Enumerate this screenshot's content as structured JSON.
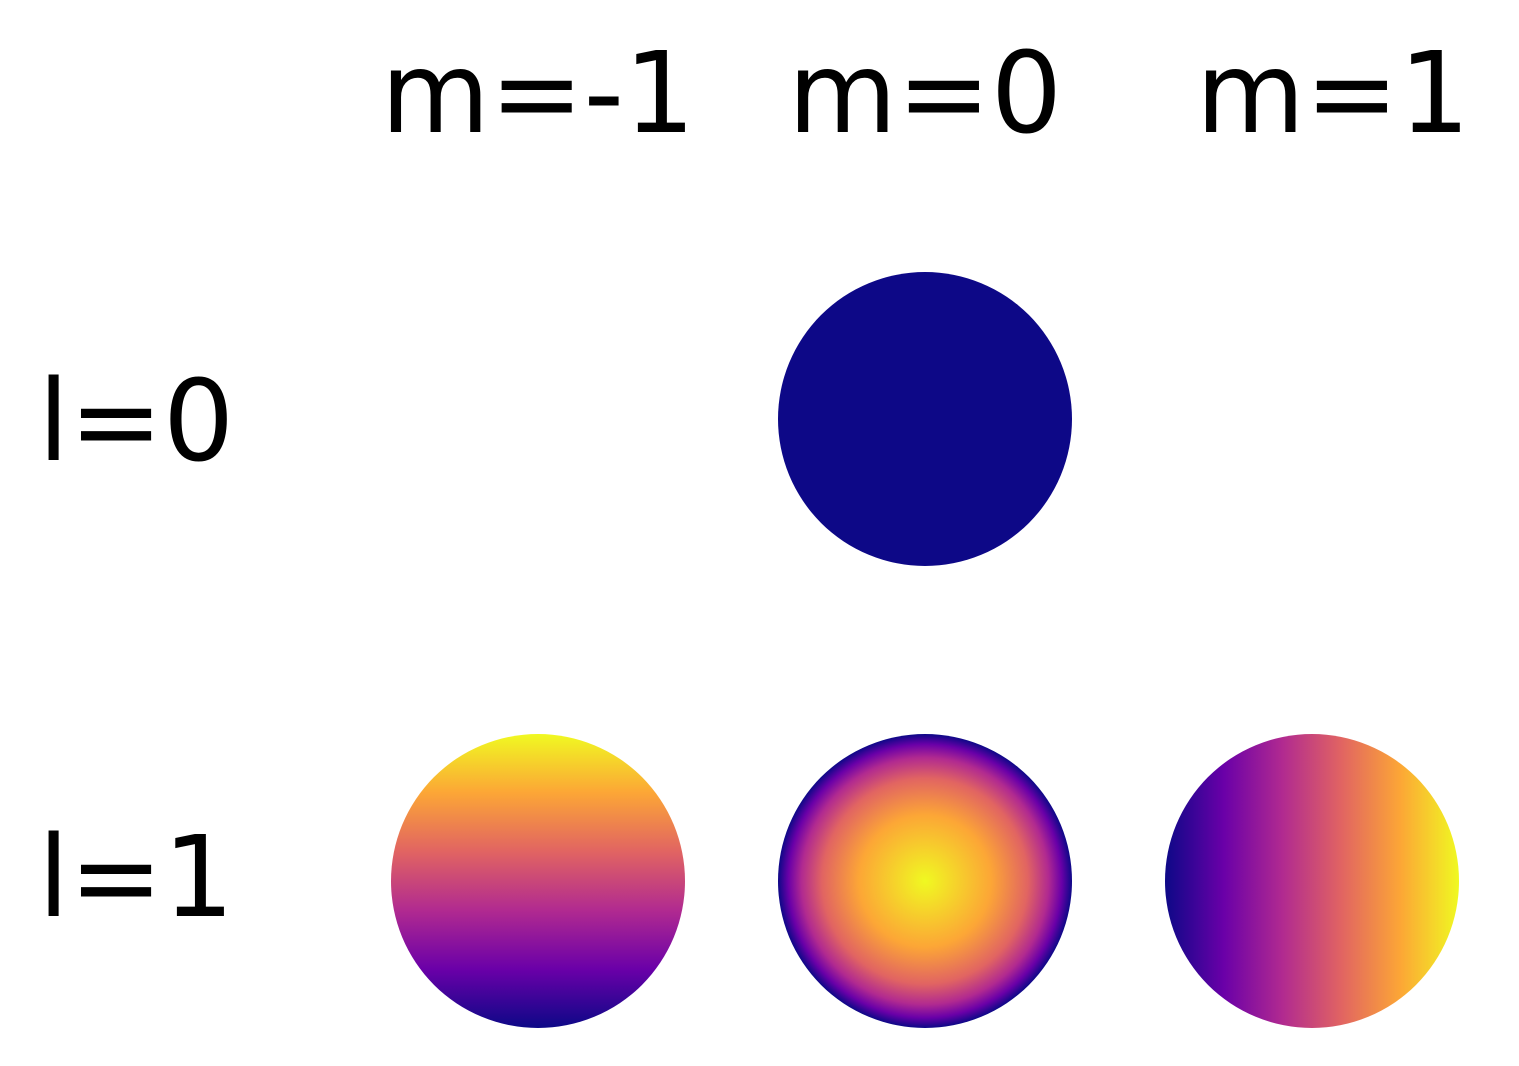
{
  "columns": [
    "m=-1",
    "m=0",
    "m=1"
  ],
  "rows": [
    "l=0",
    "l=1"
  ],
  "colormap": {
    "name": "plasma",
    "stops": [
      "#0d0887",
      "#6a00a8",
      "#b12a90",
      "#e16462",
      "#fca636",
      "#f0f921"
    ]
  },
  "cells": [
    {
      "l": 0,
      "m": 0,
      "pattern": "uniform",
      "fill": "#0d0887"
    },
    {
      "l": 1,
      "m": -1,
      "pattern": "vertical-gradient"
    },
    {
      "l": 1,
      "m": 0,
      "pattern": "radial-gradient"
    },
    {
      "l": 1,
      "m": 1,
      "pattern": "horizontal-gradient"
    }
  ]
}
